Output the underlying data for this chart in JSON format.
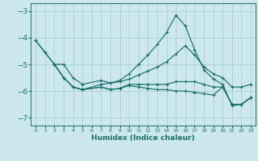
{
  "xlabel": "Humidex (Indice chaleur)",
  "xlim": [
    -0.5,
    23.5
  ],
  "ylim": [
    -7.3,
    -2.7
  ],
  "yticks": [
    -7,
    -6,
    -5,
    -4,
    -3
  ],
  "xticks": [
    0,
    1,
    2,
    3,
    4,
    5,
    6,
    7,
    8,
    9,
    10,
    11,
    12,
    13,
    14,
    15,
    16,
    17,
    18,
    19,
    20,
    21,
    22,
    23
  ],
  "bg_color": "#cce8ec",
  "line_color": "#1a6e6a",
  "grid_color": "#aad0d4",
  "lines": [
    {
      "x": [
        0,
        1,
        2,
        3,
        4,
        5,
        7,
        8,
        9,
        10,
        11,
        12,
        13,
        14,
        15,
        16,
        17,
        18,
        19,
        20,
        21,
        22,
        23
      ],
      "y": [
        -4.1,
        -4.55,
        -5.0,
        -5.5,
        -5.85,
        -5.95,
        -5.75,
        -5.7,
        -5.6,
        -5.35,
        -5.0,
        -4.65,
        -4.25,
        -3.8,
        -3.15,
        -3.55,
        -4.45,
        -5.2,
        -5.55,
        -5.75,
        -6.55,
        -6.5,
        -6.25
      ]
    },
    {
      "x": [
        0,
        1,
        2,
        3,
        4,
        5,
        7,
        8,
        9,
        10,
        11,
        12,
        13,
        14,
        15,
        16,
        17,
        18,
        19,
        20,
        21,
        22,
        23
      ],
      "y": [
        -4.1,
        -4.55,
        -5.0,
        -5.0,
        -5.5,
        -5.75,
        -5.6,
        -5.7,
        -5.65,
        -5.55,
        -5.4,
        -5.25,
        -5.1,
        -4.9,
        -4.6,
        -4.3,
        -4.65,
        -5.1,
        -5.35,
        -5.5,
        -5.85,
        -5.85,
        -5.75
      ]
    },
    {
      "x": [
        2,
        3,
        4,
        5,
        7,
        8,
        9,
        10,
        11,
        12,
        13,
        14,
        15,
        16,
        17,
        18,
        19,
        20,
        21,
        22,
        23
      ],
      "y": [
        -5.0,
        -5.5,
        -5.85,
        -5.95,
        -5.85,
        -5.95,
        -5.9,
        -5.75,
        -5.75,
        -5.75,
        -5.75,
        -5.75,
        -5.65,
        -5.65,
        -5.65,
        -5.75,
        -5.85,
        -5.85,
        -6.5,
        -6.5,
        -6.25
      ]
    },
    {
      "x": [
        2,
        3,
        4,
        5,
        7,
        8,
        9,
        10,
        11,
        12,
        13,
        14,
        15,
        16,
        17,
        18,
        19,
        20,
        21,
        22,
        23
      ],
      "y": [
        -5.0,
        -5.5,
        -5.85,
        -5.95,
        -5.85,
        -5.95,
        -5.9,
        -5.8,
        -5.85,
        -5.9,
        -5.95,
        -5.95,
        -6.0,
        -6.0,
        -6.05,
        -6.1,
        -6.15,
        -5.85,
        -6.5,
        -6.5,
        -6.25
      ]
    }
  ]
}
